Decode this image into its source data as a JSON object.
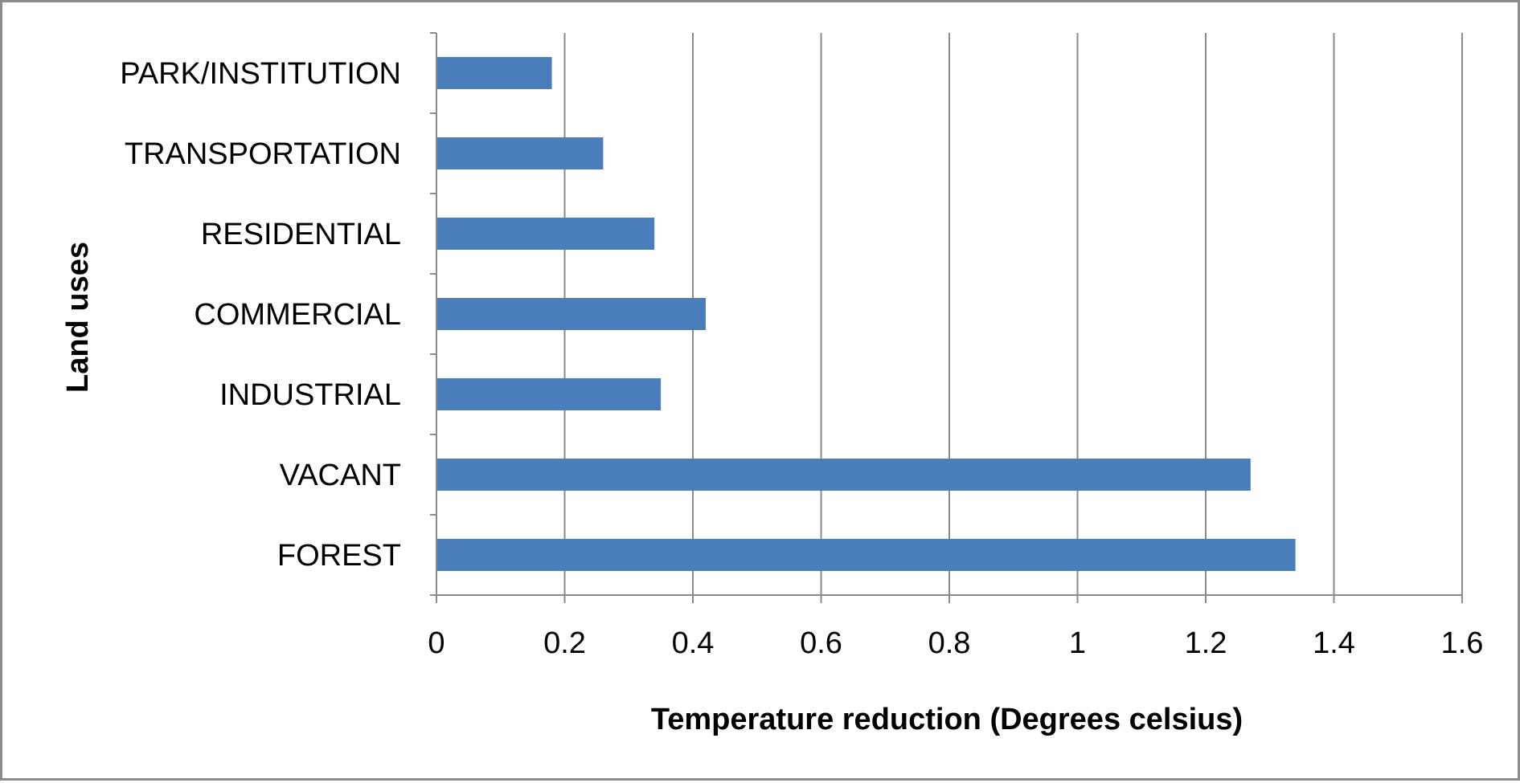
{
  "chart_data": {
    "type": "bar",
    "orientation": "horizontal",
    "title": "",
    "categories": [
      "FOREST",
      "VACANT",
      "INDUSTRIAL",
      "COMMERCIAL",
      "RESIDENTIAL",
      "TRANSPORTATION",
      "PARK/INSTITUTION"
    ],
    "values": [
      1.34,
      1.27,
      0.35,
      0.42,
      0.34,
      0.26,
      0.18
    ],
    "xlabel": "Temperature reduction (Degrees celsius)",
    "ylabel": "Land uses",
    "xlim": [
      0,
      1.6
    ],
    "xticks": [
      "0",
      "0.2",
      "0.4",
      "0.6",
      "0.8",
      "1",
      "1.2",
      "1.4",
      "1.6"
    ],
    "grid": "vertical",
    "legend": "none",
    "bar_color": "#4a7ebb"
  }
}
